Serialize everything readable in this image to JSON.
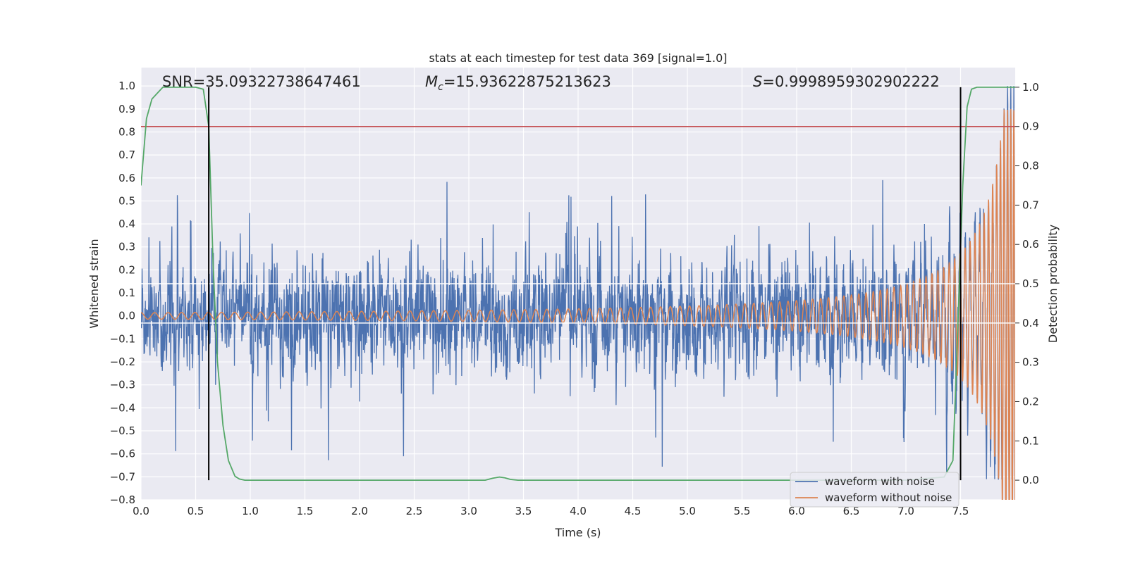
{
  "chart_data": {
    "type": "line",
    "title": "stats at each timestep for test data 369 [signal=1.0]",
    "xlabel": "Time (s)",
    "ylabel": "Whitened strain",
    "y2label": "Detection probability",
    "xlim": [
      0.0,
      8.0
    ],
    "ylim": [
      -0.8,
      1.08
    ],
    "y2lim": [
      -0.05,
      1.05
    ],
    "xticks": [
      "0.0",
      "0.5",
      "1.0",
      "1.5",
      "2.0",
      "2.5",
      "3.0",
      "3.5",
      "4.0",
      "4.5",
      "5.0",
      "5.5",
      "6.0",
      "6.5",
      "7.0",
      "7.5"
    ],
    "yticks": [
      "−0.8",
      "−0.7",
      "−0.6",
      "−0.5",
      "−0.4",
      "−0.3",
      "−0.2",
      "−0.1",
      "0.0",
      "0.1",
      "0.2",
      "0.3",
      "0.4",
      "0.5",
      "0.6",
      "0.7",
      "0.8",
      "0.9",
      "1.0"
    ],
    "y2ticks": [
      "0.0",
      "0.1",
      "0.2",
      "0.3",
      "0.4",
      "0.5",
      "0.6",
      "0.7",
      "0.8",
      "0.9",
      "1.0"
    ],
    "grid": true,
    "legend_position": "lower-right",
    "annotations": {
      "snr": "SNR=35.09322738647461",
      "mc_symbol": "M",
      "mc_sub": "c",
      "mc_value": "=15.93622875213623",
      "s_symbol": "S",
      "s_value": "=0.9998959302902222"
    },
    "series": [
      {
        "name": "waveform with noise",
        "color": "#4c72b0",
        "axis": "left",
        "description_values": {
          "t_start": 0.0,
          "t_end": 8.0,
          "typical_amplitude": 0.25,
          "max": 1.0,
          "min": -0.71
        }
      },
      {
        "name": "waveform without noise",
        "color": "#dd8452",
        "axis": "left",
        "chirp": {
          "t_start": 0.0,
          "t_end": 8.0,
          "start_amplitude": 0.015,
          "end_amplitude": 0.9,
          "start_frequency_hz": 8,
          "end_frequency_hz": 60
        }
      },
      {
        "name": "detection probability",
        "color": "#55a868",
        "axis": "right",
        "x": [
          0.0,
          0.05,
          0.1,
          0.15,
          0.2,
          0.3,
          0.4,
          0.5,
          0.57,
          0.62,
          0.66,
          0.7,
          0.75,
          0.8,
          0.86,
          0.9,
          0.95,
          1.0,
          2.0,
          3.0,
          3.15,
          3.22,
          3.28,
          3.33,
          3.38,
          3.45,
          4.0,
          5.0,
          6.0,
          7.0,
          7.35,
          7.43,
          7.47,
          7.52,
          7.56,
          7.6,
          7.65,
          7.72,
          8.0
        ],
        "y": [
          0.75,
          0.92,
          0.97,
          0.985,
          1.0,
          1.0,
          1.0,
          1.0,
          0.995,
          0.9,
          0.55,
          0.3,
          0.14,
          0.05,
          0.01,
          0.003,
          0.0,
          0.0,
          0.0,
          0.0,
          0.0,
          0.005,
          0.008,
          0.006,
          0.002,
          0.0,
          0.0,
          0.0,
          0.0,
          0.0,
          0.008,
          0.05,
          0.35,
          0.75,
          0.95,
          0.995,
          1.0,
          1.0,
          1.0
        ]
      }
    ],
    "threshold": {
      "value": 0.9,
      "axis": "right",
      "color": "#c44e52"
    },
    "vlines": [
      0.62,
      7.5
    ],
    "hlines_white_right": [
      0.4,
      0.5
    ]
  }
}
